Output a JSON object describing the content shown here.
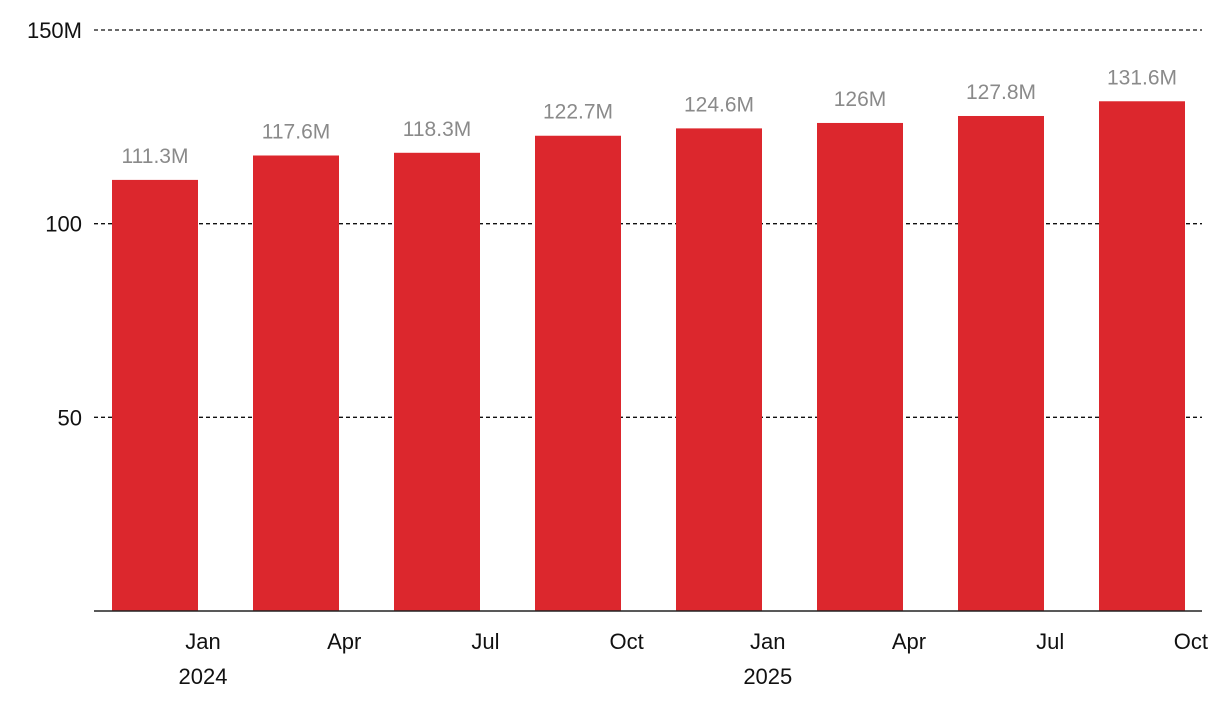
{
  "chart_data": {
    "type": "bar",
    "categories": [
      "2024 Q1",
      "2024 Q2",
      "2024 Q3",
      "2024 Q4",
      "2025 Q1",
      "2025 Q2",
      "2025 Q3",
      "2025 Q4"
    ],
    "values": [
      111.3,
      117.6,
      118.3,
      122.7,
      124.6,
      126.0,
      127.8,
      131.6
    ],
    "data_labels": [
      "111.3M",
      "117.6M",
      "118.3M",
      "122.7M",
      "124.6M",
      "126M",
      "127.8M",
      "131.6M"
    ],
    "x_ticks": [
      {
        "label": "Jan",
        "year": "2024"
      },
      {
        "label": "Apr",
        "year": ""
      },
      {
        "label": "Jul",
        "year": ""
      },
      {
        "label": "Oct",
        "year": ""
      },
      {
        "label": "Jan",
        "year": "2025"
      },
      {
        "label": "Apr",
        "year": ""
      },
      {
        "label": "Jul",
        "year": ""
      },
      {
        "label": "Oct",
        "year": ""
      }
    ],
    "y_ticks": [
      {
        "value": 50,
        "label": "50"
      },
      {
        "value": 100,
        "label": "100"
      },
      {
        "value": 150,
        "label": "150M"
      }
    ],
    "ylim": [
      0,
      150
    ],
    "grid": true,
    "bar_color": "#dc272d",
    "label_color": "#8a8a8a",
    "title": "",
    "xlabel": "",
    "ylabel": ""
  }
}
